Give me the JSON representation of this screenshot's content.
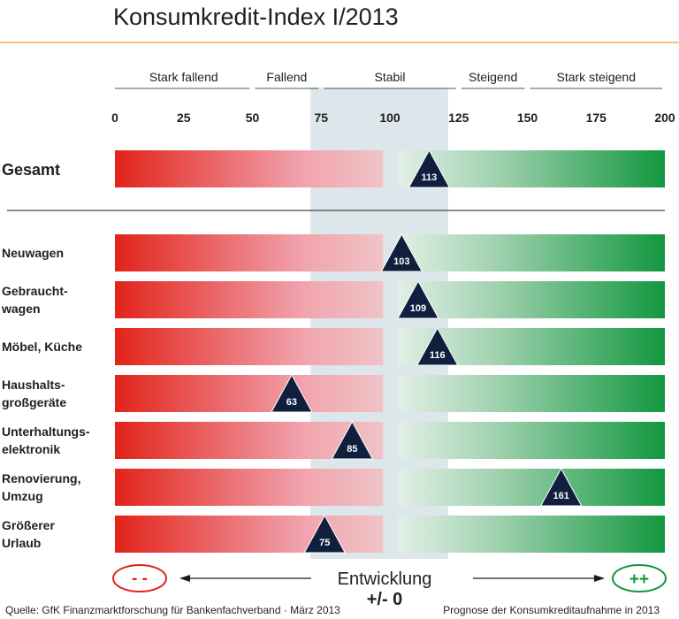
{
  "title": "Konsumkredit-Index I/2013",
  "categories_top": [
    {
      "label": "Stark fallend",
      "from": 0,
      "to": 50
    },
    {
      "label": "Fallend",
      "from": 50,
      "to": 75
    },
    {
      "label": "Stabil",
      "from": 75,
      "to": 125
    },
    {
      "label": "Steigend",
      "from": 125,
      "to": 150
    },
    {
      "label": "Stark steigend",
      "from": 150,
      "to": 200
    }
  ],
  "development": {
    "label": "Entwicklung",
    "sublabel": "+/- 0",
    "minus_symbol": "- -",
    "plus_symbol": "++"
  },
  "colors": {
    "accent_line": "#e7b14d",
    "red": "#e2231a",
    "pink": "#f1a3ad",
    "light_green": "#d9ece0",
    "green": "#12973f",
    "marker": "#0f1f3d",
    "stabil_band": "#dde6ea"
  },
  "footer": {
    "source": "Quelle: GfK Finanzmarktforschung für Bankenfachverband · März 2013",
    "note": "Prognose der Konsumkreditaufnahme in 2013"
  },
  "chart_data": {
    "type": "bar",
    "xlim": [
      0,
      200
    ],
    "ticks": [
      0,
      25,
      50,
      75,
      100,
      125,
      150,
      175,
      200
    ],
    "stable_range": [
      75,
      125
    ],
    "rows": [
      {
        "label": [
          "Gesamt"
        ],
        "value": 113,
        "total": true
      },
      {
        "label": [
          "Neuwagen"
        ],
        "value": 103
      },
      {
        "label": [
          "Gebraucht-",
          "wagen"
        ],
        "value": 109
      },
      {
        "label": [
          "Möbel, Küche"
        ],
        "value": 116
      },
      {
        "label": [
          "Haushalts-",
          "großgeräte"
        ],
        "value": 63
      },
      {
        "label": [
          "Unterhaltungs-",
          "elektronik"
        ],
        "value": 85
      },
      {
        "label": [
          "Renovierung,",
          "Umzug"
        ],
        "value": 161
      },
      {
        "label": [
          "Größerer",
          "Urlaub"
        ],
        "value": 75
      }
    ]
  }
}
